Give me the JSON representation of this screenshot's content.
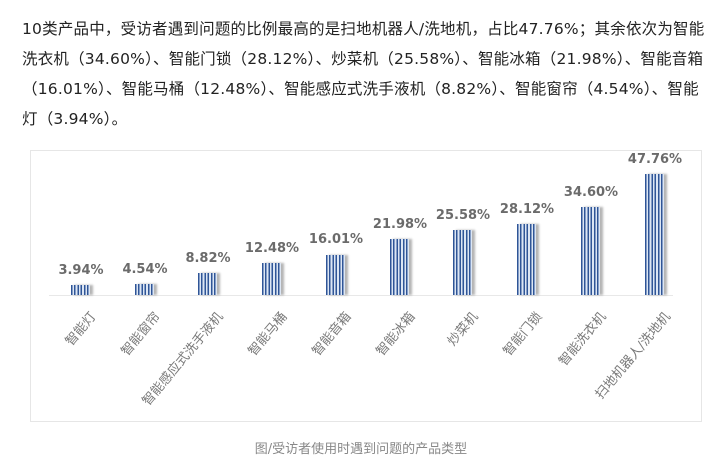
{
  "paragraph": "10类产品中，受访者遇到问题的比例最高的是扫地机器人/洗地机，占比47.76%；其余依次为智能洗衣机（34.60%）、智能门锁（28.12%）、炒菜机（25.58%）、智能冰箱（21.98%）、智能音箱（16.01%）、智能马桶（12.48%）、智能感应式洗手液机（8.82%）、智能窗帘（4.54%）、智能灯（3.94%）。",
  "caption": "图/受访者使用时遇到问题的产品类型",
  "colors": {
    "bar": "#2f5597",
    "bar_light": "#dce6f4",
    "label": "#6b6b6b",
    "text": "#222222"
  },
  "chart_data": {
    "type": "bar",
    "title": "",
    "xlabel": "",
    "ylabel": "",
    "ylim": [
      0,
      50
    ],
    "grid": false,
    "legend": null,
    "categories": [
      "智能灯",
      "智能窗帘",
      "智能感应式洗手液机",
      "智能马桶",
      "智能音箱",
      "智能冰箱",
      "炒菜机",
      "智能门锁",
      "智能洗衣机",
      "扫地机器人/洗地机"
    ],
    "values": [
      3.94,
      4.54,
      8.82,
      12.48,
      16.01,
      21.98,
      25.58,
      28.12,
      34.6,
      47.76
    ],
    "value_labels": [
      "3.94%",
      "4.54%",
      "8.82%",
      "12.48%",
      "16.01%",
      "21.98%",
      "25.58%",
      "28.12%",
      "34.60%",
      "47.76%"
    ],
    "unit": "%"
  }
}
